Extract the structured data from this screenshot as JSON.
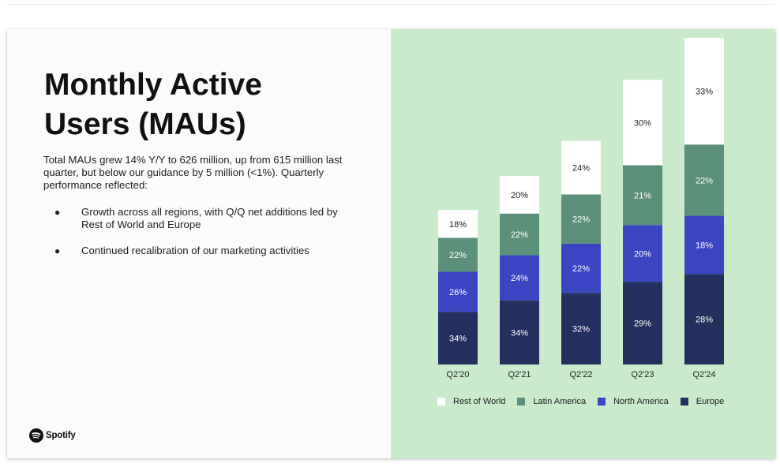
{
  "slide": {
    "title": "Monthly Active Users (MAUs)",
    "intro": "Total MAUs grew 14% Y/Y to 626 million, up from 615 million last quarter, but below our guidance by 5 million (<1%). Quarterly performance reflected:",
    "bullets": [
      "Growth across all regions, with Q/Q net additions led by Rest of World and Europe",
      "Continued recalibration of our marketing activities"
    ],
    "bullet_glyph": "●",
    "logo_text": "Spotify"
  },
  "colors": {
    "panel_background": "#c9ebcb",
    "europe": "#24305e",
    "north_america": "#3a45c1",
    "latin_america": "#5b917a",
    "rest_of_world": "#ffffff"
  },
  "chart_data": {
    "type": "bar",
    "stacked": true,
    "categories": [
      "Q2'20",
      "Q2'21",
      "Q2'22",
      "Q2'23",
      "Q2'24"
    ],
    "totals_millions": [
      299,
      365,
      433,
      551,
      626
    ],
    "series": [
      {
        "name": "Europe",
        "values": [
          34,
          34,
          32,
          29,
          28
        ],
        "labels": [
          "34%",
          "34%",
          "32%",
          "29%",
          "28%"
        ],
        "color": "#24305e",
        "label_color": "#ffffff"
      },
      {
        "name": "North America",
        "values": [
          26,
          24,
          22,
          20,
          18
        ],
        "labels": [
          "26%",
          "24%",
          "22%",
          "20%",
          "18%"
        ],
        "color": "#3a45c1",
        "label_color": "#ffffff"
      },
      {
        "name": "Latin America",
        "values": [
          22,
          22,
          22,
          21,
          22
        ],
        "labels": [
          "22%",
          "22%",
          "22%",
          "21%",
          "22%"
        ],
        "color": "#5b917a",
        "label_color": "#ffffff"
      },
      {
        "name": "Rest of World",
        "values": [
          18,
          20,
          24,
          30,
          33
        ],
        "labels": [
          "18%",
          "20%",
          "24%",
          "30%",
          "33%"
        ],
        "color": "#ffffff",
        "label_color": "#222222"
      }
    ],
    "legend": {
      "placement": "bottom",
      "order": [
        "Rest of World",
        "Latin America",
        "North America",
        "Europe"
      ]
    },
    "y_axis_visible": false,
    "grid": false
  }
}
